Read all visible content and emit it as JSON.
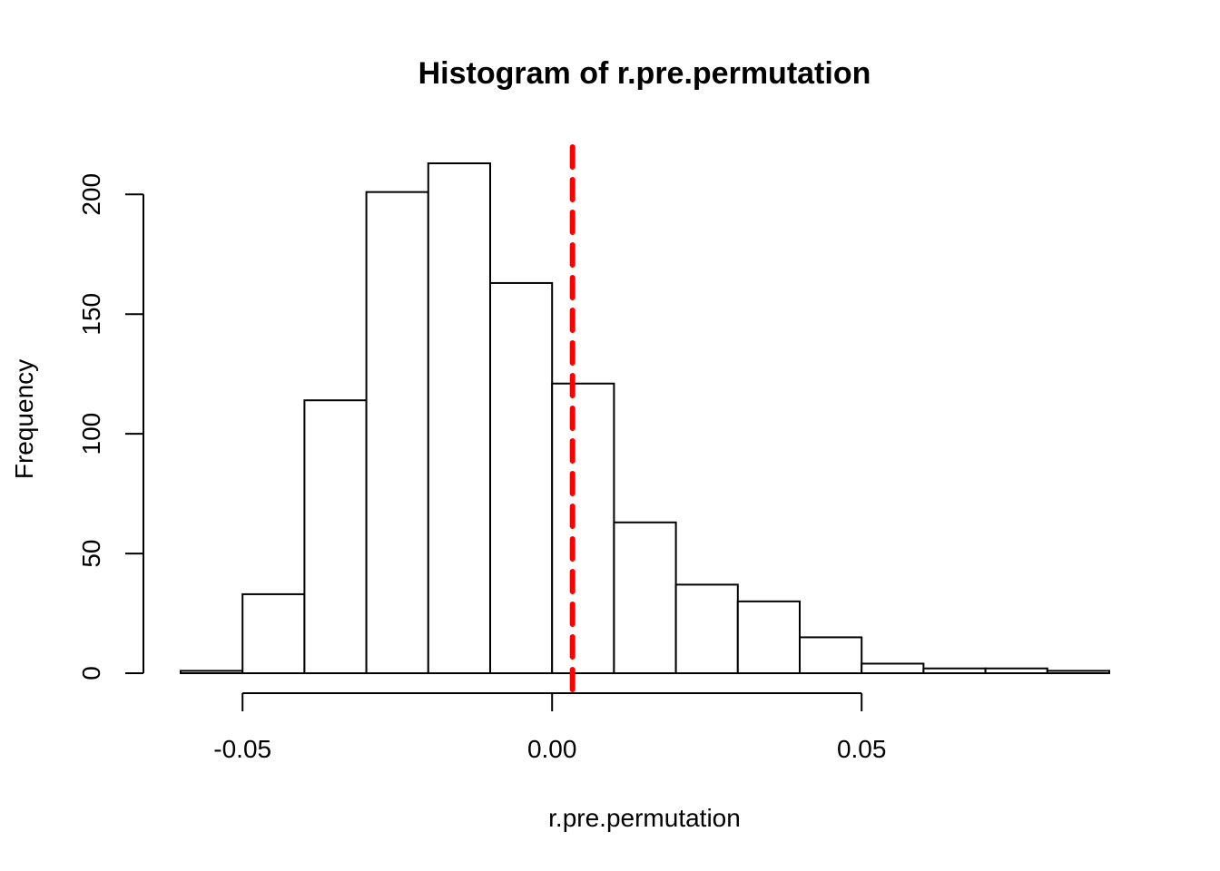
{
  "chart_data": {
    "type": "bar",
    "subtype": "histogram",
    "title": "Histogram of r.pre.permutation",
    "xlabel": "r.pre.permutation",
    "ylabel": "Frequency",
    "bin_edges": [
      -0.06,
      -0.05,
      -0.04,
      -0.03,
      -0.02,
      -0.01,
      0.0,
      0.01,
      0.02,
      0.03,
      0.04,
      0.05,
      0.06,
      0.07,
      0.08,
      0.09
    ],
    "counts": [
      1,
      33,
      114,
      201,
      213,
      163,
      121,
      63,
      37,
      30,
      15,
      4,
      2,
      2,
      1
    ],
    "xlim": [
      -0.06,
      0.09
    ],
    "ylim": [
      0,
      213
    ],
    "x_ticks": [
      -0.05,
      0.0,
      0.05
    ],
    "x_tick_labels": [
      "-0.05",
      "0.00",
      "0.05"
    ],
    "y_ticks": [
      0,
      50,
      100,
      150,
      200
    ],
    "y_tick_labels": [
      "0",
      "50",
      "100",
      "150",
      "200"
    ],
    "reference_line": {
      "x": 0.0033,
      "color": "#ff0000",
      "style": "dashed"
    },
    "grid": false,
    "bar_fill": "#ffffff",
    "bar_stroke": "#000000"
  }
}
